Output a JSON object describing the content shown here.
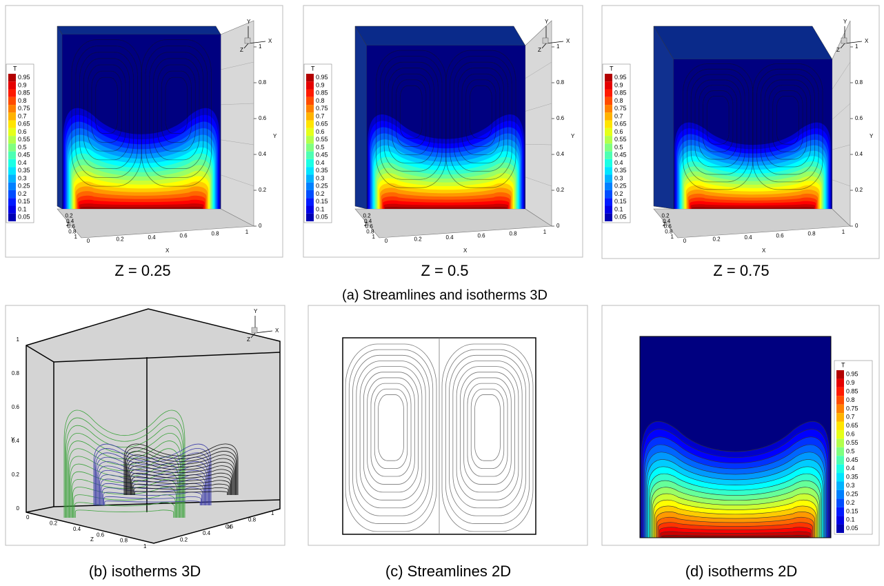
{
  "figure": {
    "legend": {
      "title": "T",
      "levels": [
        0.95,
        0.9,
        0.85,
        0.8,
        0.75,
        0.7,
        0.65,
        0.6,
        0.55,
        0.5,
        0.45,
        0.4,
        0.35,
        0.3,
        0.25,
        0.2,
        0.15,
        0.1,
        0.05
      ]
    },
    "axes": {
      "x_label": "X",
      "y_label": "Y",
      "z_label": "Z",
      "ticks": [
        0,
        0.2,
        0.4,
        0.6,
        0.8,
        1
      ]
    },
    "row_a": {
      "caption": "(a)   Streamlines and isotherms 3D",
      "panels": [
        {
          "caption": "Z = 0.25"
        },
        {
          "caption": "Z = 0.5"
        },
        {
          "caption": "Z = 0.75"
        }
      ]
    },
    "row_b": [
      {
        "caption": "(b) isotherms 3D"
      },
      {
        "caption": "(c) Streamlines 2D"
      },
      {
        "caption": "(d) isotherms 2D"
      }
    ]
  }
}
